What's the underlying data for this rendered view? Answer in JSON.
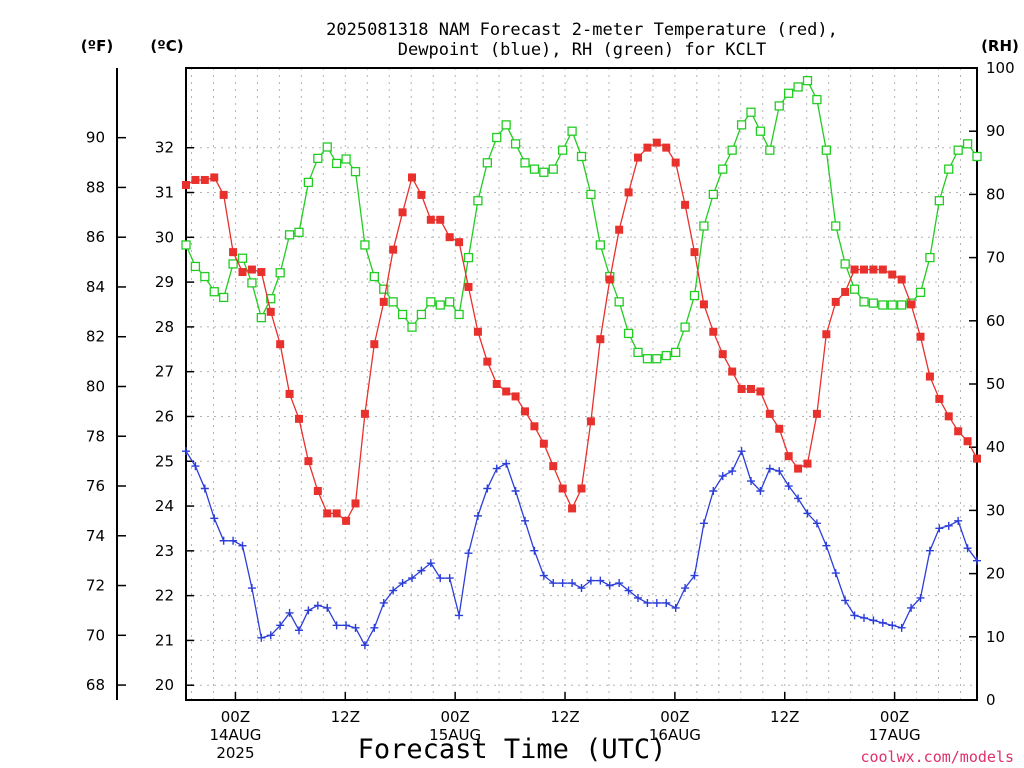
{
  "chart_data": {
    "type": "line",
    "title_line1": "2025081318 NAM Forecast 2-meter Temperature (red),",
    "title_line2": "Dewpoint (blue), RH (green) for KCLT",
    "left_axis1_unit": "(ºF)",
    "left_axis2_unit": "(ºC)",
    "right_axis_unit": "(RH)",
    "xlabel": "Forecast Time (UTC)",
    "credit": "coolwx.com/models",
    "xlim": [
      -4.5,
      67.5
    ],
    "ylim_f": [
      67.4,
      92.8
    ],
    "ylim_c": [
      19.67,
      33.78
    ],
    "ylim_rh": [
      0,
      100
    ],
    "f_ticks": [
      "68",
      "70",
      "72",
      "74",
      "76",
      "78",
      "80",
      "82",
      "84",
      "86",
      "88",
      "90"
    ],
    "c_ticks": [
      "20",
      "21",
      "22",
      "23",
      "24",
      "25",
      "26",
      "27",
      "28",
      "29",
      "30",
      "31",
      "32"
    ],
    "rh_ticks": [
      "0",
      "10",
      "20",
      "30",
      "40",
      "50",
      "60",
      "70",
      "80",
      "90",
      "100"
    ],
    "x_ticks": [
      {
        "h": 0,
        "l1": "00Z",
        "l2": "14AUG",
        "l3": "2025"
      },
      {
        "h": 10,
        "l1": "12Z",
        "l2": "",
        "l3": ""
      },
      {
        "h": 20,
        "l1": "00Z",
        "l2": "15AUG",
        "l3": ""
      },
      {
        "h": 30,
        "l1": "12Z",
        "l2": "",
        "l3": ""
      },
      {
        "h": 40,
        "l1": "00Z",
        "l2": "16AUG",
        "l3": ""
      },
      {
        "h": 50,
        "l1": "12Z",
        "l2": "",
        "l3": ""
      },
      {
        "h": 60,
        "l1": "00Z",
        "l2": "17AUG",
        "l3": ""
      }
    ],
    "grid": true,
    "series": [
      {
        "name": "Temperature",
        "color": "#e8302c",
        "units": "F",
        "marker": "filled-square",
        "values": [
          88.1,
          88.3,
          88.3,
          88.4,
          87.7,
          85.4,
          84.6,
          84.7,
          84.6,
          83.0,
          81.7,
          79.7,
          78.7,
          77.0,
          75.8,
          74.9,
          74.9,
          74.6,
          75.3,
          78.9,
          81.7,
          83.4,
          85.5,
          87.0,
          88.4,
          87.7,
          86.7,
          86.7,
          86.0,
          85.8,
          84.0,
          82.2,
          81.0,
          80.1,
          79.8,
          79.6,
          79.0,
          78.4,
          77.7,
          76.8,
          75.9,
          75.1,
          75.9,
          78.6,
          81.9,
          84.3,
          86.3,
          87.8,
          89.2,
          89.6,
          89.8,
          89.6,
          89.0,
          87.3,
          85.4,
          83.3,
          82.2,
          81.3,
          80.6,
          79.9,
          79.9,
          79.8,
          78.9,
          78.3,
          77.2,
          76.7,
          76.9,
          78.9,
          82.1,
          83.4,
          83.8,
          84.7,
          84.7,
          84.7,
          84.7,
          84.5,
          84.3,
          83.3,
          82.0,
          80.4,
          79.5,
          78.8,
          78.2,
          77.8,
          77.1
        ]
      },
      {
        "name": "Dewpoint",
        "color": "#2c3ed8",
        "units": "F",
        "marker": "plus",
        "values": [
          77.4,
          76.8,
          75.9,
          74.7,
          73.8,
          73.8,
          73.6,
          71.9,
          69.9,
          70.0,
          70.4,
          70.9,
          70.2,
          71.0,
          71.2,
          71.1,
          70.4,
          70.4,
          70.3,
          69.6,
          70.3,
          71.3,
          71.8,
          72.1,
          72.3,
          72.6,
          72.9,
          72.3,
          72.3,
          70.8,
          73.3,
          74.8,
          75.9,
          76.7,
          76.9,
          75.8,
          74.6,
          73.4,
          72.4,
          72.1,
          72.1,
          72.1,
          71.9,
          72.2,
          72.2,
          72.0,
          72.1,
          71.8,
          71.5,
          71.3,
          71.3,
          71.3,
          71.1,
          71.9,
          72.4,
          74.5,
          75.8,
          76.4,
          76.6,
          77.4,
          76.2,
          75.8,
          76.7,
          76.6,
          76.0,
          75.5,
          74.9,
          74.5,
          73.6,
          72.5,
          71.4,
          70.8,
          70.7,
          70.6,
          70.5,
          70.4,
          70.3,
          71.1,
          71.5,
          73.4,
          74.3,
          74.4,
          74.6,
          73.5,
          73.0
        ]
      },
      {
        "name": "RH",
        "color": "#22cc22",
        "units": "%",
        "marker": "open-square",
        "values": [
          72,
          68.6,
          67,
          64.6,
          63.7,
          69,
          69.9,
          66,
          60.5,
          63.5,
          67.6,
          73.6,
          74,
          81.9,
          85.7,
          87.5,
          84.9,
          85.6,
          83.6,
          72,
          67,
          65,
          63,
          61,
          59,
          61,
          63,
          62.5,
          63,
          61,
          70,
          79,
          85,
          89,
          91,
          88,
          85,
          84,
          83.5,
          84,
          87,
          90,
          86,
          80,
          72,
          67,
          63,
          58,
          55,
          54,
          54,
          54.5,
          55,
          59,
          64,
          75,
          80,
          84,
          87,
          91,
          93,
          90,
          87,
          94,
          96,
          97,
          98,
          95,
          87,
          75,
          69,
          65,
          63,
          62.8,
          62.5,
          62.5,
          62.5,
          62.8,
          64.5,
          70,
          79,
          84,
          87,
          88,
          86
        ]
      }
    ]
  }
}
